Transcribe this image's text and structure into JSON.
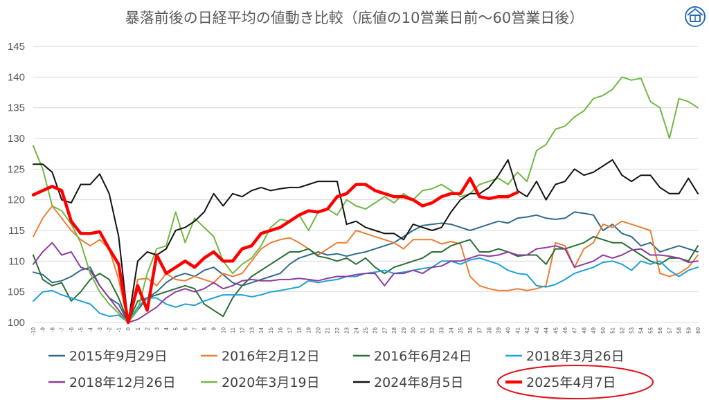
{
  "chart_data": {
    "type": "line",
    "title": "暴落前後の日経平均の値動き比較（底値の10営業日前〜60営業日後）",
    "xlabel": "",
    "ylabel": "",
    "ylim": [
      100,
      145
    ],
    "yticks": [
      100,
      105,
      110,
      115,
      120,
      125,
      130,
      135,
      140,
      145
    ],
    "xlim": [
      -10,
      60
    ],
    "grid": true,
    "legend_position": "bottom",
    "logo_icon": "house-logo-icon",
    "series": [
      {
        "name": "2015年9月29日",
        "color": "#2e6b8c",
        "width": 2,
        "values": [
          108.2,
          107.8,
          106.5,
          106.8,
          107.5,
          108.5,
          109,
          106,
          104,
          103,
          100,
          102,
          104,
          105,
          106.5,
          107.5,
          108,
          107.5,
          108.5,
          109,
          107.8,
          106.5,
          106,
          106.5,
          107,
          107.5,
          108,
          109.5,
          110.5,
          111,
          111.5,
          111,
          111.2,
          110.8,
          111.2,
          111.5,
          112,
          112.5,
          113,
          114,
          115,
          115.8,
          116,
          116.2,
          116,
          115.5,
          115,
          115.5,
          116,
          116.5,
          116.2,
          117,
          117.2,
          117.5,
          117,
          116.8,
          117,
          118,
          117.8,
          117.5,
          115,
          116,
          114.5,
          114,
          112.5,
          113,
          111.5,
          112,
          112.5,
          112,
          111.5
        ]
      },
      {
        "name": "2016年2月12日",
        "color": "#ed7d31",
        "width": 2,
        "values": [
          114,
          117,
          119,
          117,
          115,
          113.5,
          112.5,
          113.5,
          112,
          107,
          100,
          107,
          107.2,
          106,
          108,
          107,
          106.8,
          107.5,
          107,
          106.5,
          108,
          107.5,
          108,
          110,
          112,
          113,
          113.5,
          113.8,
          113,
          112,
          111,
          112,
          113,
          113,
          115,
          114.5,
          114,
          113.5,
          113,
          112,
          113.5,
          113.5,
          113.5,
          112.8,
          113.2,
          112.8,
          107.5,
          106,
          105.5,
          105.2,
          105.2,
          105.5,
          105.2,
          105.5,
          106,
          113,
          112.5,
          109,
          112,
          113,
          116,
          115.5,
          116.5,
          116,
          115.5,
          115,
          108,
          107.5,
          108,
          109,
          111
        ]
      },
      {
        "name": "2016年6月24日",
        "color": "#2a6e35",
        "width": 2,
        "values": [
          111,
          107,
          106,
          106.5,
          103.5,
          105,
          107,
          108,
          107,
          104,
          100,
          103.5,
          104,
          104.5,
          105,
          105.5,
          106,
          105.5,
          103,
          102,
          101,
          104,
          106,
          107.5,
          108.5,
          109.5,
          110.5,
          111.5,
          111.5,
          112,
          110.8,
          110.5,
          110,
          110.5,
          109.5,
          110.5,
          109,
          108,
          109,
          109.5,
          110,
          110.5,
          111.5,
          111.5,
          112.5,
          113,
          113.5,
          111.5,
          111.5,
          112,
          111.5,
          110.8,
          111,
          111,
          109.5,
          112,
          112,
          112.5,
          113,
          114,
          113.5,
          113,
          113,
          112,
          111,
          110,
          109.5,
          110.5,
          110.5,
          110,
          112.5
        ]
      },
      {
        "name": "2018年3月26日",
        "color": "#1ea0d8",
        "width": 2,
        "values": [
          103.5,
          105,
          105.2,
          104.5,
          104,
          103.5,
          103,
          101.5,
          101,
          101.2,
          100,
          102.5,
          104,
          104,
          103,
          102.5,
          103,
          102.8,
          103.5,
          104,
          104.5,
          104.5,
          104.5,
          104.2,
          104.5,
          105,
          105.2,
          105.5,
          105.8,
          106.8,
          106.5,
          106.8,
          107,
          107.5,
          107.5,
          108,
          108.2,
          108.5,
          108,
          108.2,
          108.5,
          108.8,
          109,
          110,
          110,
          109.5,
          110.2,
          110.5,
          110,
          109.5,
          108.5,
          108,
          107.8,
          106,
          105.8,
          106.2,
          107,
          108,
          108.5,
          109,
          109.8,
          110,
          109.5,
          108.5,
          110,
          109.5,
          110,
          108.5,
          107.5,
          108.5,
          109
        ]
      },
      {
        "name": "2018年12月26日",
        "color": "#8e3a9d",
        "width": 2,
        "values": [
          109.5,
          111.5,
          113,
          111,
          111.5,
          109,
          108.5,
          106,
          104,
          102,
          100,
          100.5,
          101.5,
          102.5,
          104,
          105,
          105.5,
          105,
          105.5,
          106.5,
          105.5,
          106,
          106.8,
          107,
          106.8,
          106.8,
          107,
          107,
          107.2,
          107,
          106.8,
          107.2,
          107.5,
          107.5,
          107.8,
          108,
          108,
          106,
          108,
          108,
          108.5,
          108,
          109,
          109.2,
          110,
          110,
          110.5,
          111,
          110.8,
          111,
          111.5,
          111,
          111,
          112,
          112.2,
          112.5,
          112,
          109,
          109.5,
          110,
          111,
          110.5,
          111,
          111.8,
          112,
          111,
          111,
          110.8,
          110.5,
          109.8,
          110
        ]
      },
      {
        "name": "2020年3月19日",
        "color": "#70b844",
        "width": 2,
        "values": [
          128.8,
          125,
          119,
          118.2,
          116,
          113,
          108,
          105,
          103,
          101.5,
          100,
          102,
          108,
          112,
          112.5,
          118,
          113,
          117,
          115.5,
          114,
          110,
          108,
          109.5,
          110.5,
          112.5,
          115.5,
          116.8,
          116.5,
          117.5,
          115,
          118,
          118.5,
          117.5,
          120,
          119,
          118.5,
          119.5,
          120.5,
          119.5,
          121,
          120,
          121.5,
          121.8,
          122.5,
          121.5,
          120.5,
          121,
          122.5,
          123,
          123.5,
          122.5,
          124.5,
          123,
          128,
          129,
          131.5,
          132,
          133.5,
          134.5,
          136.5,
          137,
          138,
          140,
          139.5,
          139.8,
          136,
          135,
          130,
          136.5,
          136,
          135
        ]
      },
      {
        "name": "2024年8月5日",
        "color": "#111111",
        "width": 2,
        "values": [
          125.8,
          125.8,
          124.5,
          120,
          119.5,
          122.5,
          122.5,
          124.2,
          121,
          114,
          100,
          110,
          111.5,
          111,
          112,
          115,
          115.5,
          116.5,
          118,
          121,
          119,
          121,
          120.5,
          121.5,
          122,
          121.5,
          121.8,
          122,
          122,
          122.5,
          123,
          123,
          123,
          116,
          116.5,
          115.5,
          115,
          114.5,
          114.5,
          113.5,
          116,
          115.5,
          115,
          115.5,
          118,
          120,
          121,
          121,
          122,
          124,
          126.5,
          121.5,
          120.5,
          123,
          120,
          122.5,
          123,
          125,
          124,
          124.5,
          125.5,
          126.5,
          124,
          123,
          124,
          124,
          122,
          121,
          121,
          123.5,
          121
        ]
      },
      {
        "name": "2025年4月7日",
        "color": "#ff0000",
        "width": 4.5,
        "values": [
          120.8,
          121.5,
          122.2,
          121.5,
          116.5,
          114.5,
          114.5,
          114.8,
          112,
          109.5,
          100,
          106,
          102,
          111,
          108,
          109,
          110,
          109,
          110.5,
          111.5,
          110,
          110,
          112,
          112.5,
          114.5,
          115,
          115.5,
          116.5,
          117.5,
          118.2,
          118,
          118.5,
          120.5,
          121,
          122.5,
          122.5,
          121.5,
          121,
          120.5,
          120.5,
          120,
          119,
          119.5,
          120.5,
          121,
          121,
          123.5,
          120.5,
          120.2,
          120.5,
          120.5,
          121.2
        ]
      }
    ]
  }
}
